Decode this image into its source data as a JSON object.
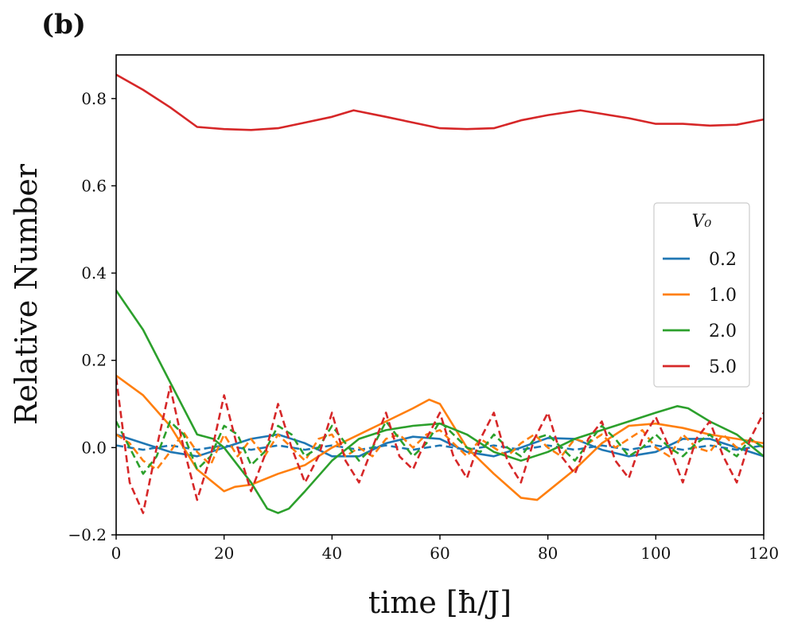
{
  "panel_label": "(b)",
  "chart_data": {
    "type": "line",
    "xlabel": "time [ħ/J]",
    "ylabel": "Relative Number",
    "xlim": [
      0,
      120
    ],
    "ylim": [
      -0.2,
      0.9
    ],
    "xticks": [
      0,
      20,
      40,
      60,
      80,
      100,
      120
    ],
    "xtick_labels": [
      "0",
      "20",
      "40",
      "60",
      "80",
      "100",
      "120"
    ],
    "yticks": [
      -0.2,
      0.0,
      0.2,
      0.4,
      0.6,
      0.8
    ],
    "ytick_labels": [
      "−0.2",
      "0.0",
      "0.2",
      "0.4",
      "0.6",
      "0.8"
    ],
    "grid": false,
    "legend": {
      "title": "V₀",
      "placement": "center-right",
      "entries": [
        {
          "label": "0.2",
          "color": "#1f77b4"
        },
        {
          "label": "1.0",
          "color": "#ff7f0e"
        },
        {
          "label": "2.0",
          "color": "#2ca02c"
        },
        {
          "label": "5.0",
          "color": "#d62728"
        }
      ]
    },
    "series": [
      {
        "name": "V0=0.2 solid",
        "v0": "0.2",
        "style": "solid",
        "color": "#1f77b4",
        "x": [
          0,
          5,
          10,
          15,
          20,
          25,
          30,
          35,
          40,
          45,
          50,
          55,
          60,
          65,
          70,
          75,
          80,
          85,
          90,
          95,
          100,
          105,
          110,
          115,
          120
        ],
        "y": [
          0.03,
          0.01,
          -0.01,
          -0.02,
          0.0,
          0.02,
          0.03,
          0.01,
          -0.02,
          -0.02,
          0.01,
          0.025,
          0.02,
          -0.01,
          -0.02,
          0.0,
          0.022,
          0.02,
          -0.005,
          -0.02,
          -0.01,
          0.02,
          0.02,
          0.0,
          -0.02
        ]
      },
      {
        "name": "V0=0.2 dashed",
        "v0": "0.2",
        "style": "dashed",
        "color": "#1f77b4",
        "x": [
          0,
          5,
          10,
          15,
          20,
          25,
          30,
          35,
          40,
          45,
          50,
          55,
          60,
          65,
          70,
          75,
          80,
          85,
          90,
          95,
          100,
          105,
          110,
          115,
          120
        ],
        "y": [
          0.005,
          -0.005,
          0.005,
          -0.005,
          0.005,
          -0.005,
          0.005,
          -0.005,
          0.005,
          -0.005,
          0.005,
          -0.005,
          0.005,
          -0.005,
          0.005,
          -0.005,
          0.005,
          -0.005,
          0.005,
          -0.005,
          0.005,
          -0.005,
          0.005,
          -0.005,
          0.005
        ]
      },
      {
        "name": "V0=1.0 solid",
        "v0": "1.0",
        "style": "solid",
        "color": "#ff7f0e",
        "x": [
          0,
          5,
          10,
          15,
          20,
          22,
          25,
          30,
          35,
          40,
          45,
          50,
          55,
          58,
          60,
          65,
          70,
          75,
          78,
          80,
          85,
          90,
          95,
          100,
          105,
          110,
          115,
          120
        ],
        "y": [
          0.165,
          0.12,
          0.05,
          -0.05,
          -0.1,
          -0.09,
          -0.085,
          -0.06,
          -0.04,
          0.0,
          0.03,
          0.06,
          0.09,
          0.11,
          0.1,
          0.0,
          -0.06,
          -0.115,
          -0.12,
          -0.1,
          -0.05,
          0.01,
          0.05,
          0.055,
          0.045,
          0.03,
          0.02,
          0.01
        ]
      },
      {
        "name": "V0=1.0 dashed",
        "v0": "1.0",
        "style": "dashed",
        "color": "#ff7f0e",
        "x": [
          0,
          2.5,
          5,
          7.5,
          10,
          12.5,
          15,
          17.5,
          20,
          22.5,
          25,
          27.5,
          30,
          32.5,
          35,
          37.5,
          40,
          42.5,
          45,
          47.5,
          50,
          52.5,
          55,
          57.5,
          60,
          62.5,
          65,
          67.5,
          70,
          72.5,
          75,
          77.5,
          80,
          82.5,
          85,
          87.5,
          90,
          92.5,
          95,
          97.5,
          100,
          102.5,
          105,
          107.5,
          110,
          112.5,
          115,
          117.5,
          120
        ],
        "y": [
          0.03,
          0.01,
          -0.03,
          -0.05,
          -0.01,
          0.035,
          -0.01,
          -0.04,
          0.03,
          -0.02,
          0.02,
          -0.02,
          0.03,
          0.0,
          -0.03,
          0.02,
          0.03,
          -0.02,
          0.0,
          -0.02,
          0.02,
          0.03,
          0.0,
          0.03,
          0.04,
          0.01,
          -0.02,
          0.02,
          0.0,
          -0.02,
          0.01,
          0.03,
          0.0,
          -0.02,
          0.02,
          0.01,
          0.03,
          0.0,
          0.02,
          0.04,
          0.0,
          -0.02,
          0.03,
          0.0,
          -0.01,
          0.03,
          0.0,
          0.02,
          0.0
        ]
      },
      {
        "name": "V0=2.0 solid",
        "v0": "2.0",
        "style": "solid",
        "color": "#2ca02c",
        "x": [
          0,
          5,
          10,
          15,
          18,
          20,
          25,
          28,
          30,
          32,
          35,
          40,
          45,
          50,
          55,
          60,
          65,
          70,
          75,
          80,
          85,
          90,
          95,
          100,
          104,
          106,
          110,
          115,
          120
        ],
        "y": [
          0.36,
          0.27,
          0.15,
          0.03,
          0.02,
          0.0,
          -0.08,
          -0.14,
          -0.15,
          -0.14,
          -0.1,
          -0.03,
          0.02,
          0.04,
          0.05,
          0.055,
          0.03,
          -0.01,
          -0.03,
          -0.01,
          0.02,
          0.04,
          0.06,
          0.08,
          0.095,
          0.09,
          0.06,
          0.03,
          -0.02
        ]
      },
      {
        "name": "V0=2.0 dashed",
        "v0": "2.0",
        "style": "dashed",
        "color": "#2ca02c",
        "x": [
          0,
          2.5,
          5,
          7.5,
          10,
          12.5,
          15,
          17.5,
          20,
          22.5,
          25,
          27.5,
          30,
          32.5,
          35,
          37.5,
          40,
          42.5,
          45,
          47.5,
          50,
          52.5,
          55,
          57.5,
          60,
          62.5,
          65,
          67.5,
          70,
          72.5,
          75,
          77.5,
          80,
          82.5,
          85,
          87.5,
          90,
          92.5,
          95,
          97.5,
          100,
          102.5,
          105,
          107.5,
          110,
          112.5,
          115,
          117.5,
          120
        ],
        "y": [
          0.06,
          0.0,
          -0.06,
          -0.02,
          0.06,
          0.03,
          -0.05,
          -0.02,
          0.05,
          0.03,
          -0.04,
          -0.01,
          0.05,
          0.03,
          -0.02,
          0.0,
          0.05,
          0.01,
          -0.03,
          0.0,
          0.06,
          0.02,
          -0.02,
          0.01,
          0.06,
          0.03,
          0.0,
          -0.01,
          0.03,
          0.0,
          -0.02,
          0.02,
          0.03,
          0.0,
          -0.03,
          0.01,
          0.05,
          0.02,
          -0.02,
          0.0,
          0.03,
          0.0,
          -0.02,
          0.01,
          0.03,
          0.0,
          -0.02,
          0.02,
          0.0
        ]
      },
      {
        "name": "V0=5.0 solid",
        "v0": "5.0",
        "style": "solid",
        "color": "#d62728",
        "x": [
          0,
          5,
          10,
          15,
          20,
          25,
          30,
          35,
          40,
          44,
          50,
          55,
          60,
          65,
          70,
          75,
          80,
          86,
          90,
          95,
          100,
          105,
          110,
          115,
          120
        ],
        "y": [
          0.855,
          0.82,
          0.78,
          0.735,
          0.73,
          0.728,
          0.732,
          0.745,
          0.758,
          0.773,
          0.758,
          0.745,
          0.732,
          0.73,
          0.732,
          0.75,
          0.762,
          0.773,
          0.765,
          0.755,
          0.742,
          0.742,
          0.738,
          0.74,
          0.752
        ]
      },
      {
        "name": "V0=5.0 dashed",
        "v0": "5.0",
        "style": "dashed",
        "color": "#d62728",
        "x": [
          0,
          2.5,
          5,
          7.5,
          10,
          12.5,
          15,
          17.5,
          20,
          22.5,
          25,
          27.5,
          30,
          32.5,
          35,
          37.5,
          40,
          42.5,
          45,
          47.5,
          50,
          52.5,
          55,
          57.5,
          60,
          62.5,
          65,
          67.5,
          70,
          72.5,
          75,
          77.5,
          80,
          82.5,
          85,
          87.5,
          90,
          92.5,
          95,
          97.5,
          100,
          102.5,
          105,
          107.5,
          110,
          112.5,
          115,
          117.5,
          120
        ],
        "y": [
          0.16,
          -0.08,
          -0.15,
          0.0,
          0.14,
          0.0,
          -0.12,
          -0.02,
          0.12,
          0.0,
          -0.1,
          -0.02,
          0.1,
          0.0,
          -0.08,
          -0.02,
          0.08,
          -0.03,
          -0.08,
          0.0,
          0.08,
          -0.02,
          -0.05,
          0.02,
          0.08,
          -0.02,
          -0.07,
          0.02,
          0.08,
          -0.03,
          -0.08,
          0.02,
          0.08,
          -0.02,
          -0.06,
          0.02,
          0.06,
          -0.03,
          -0.07,
          0.02,
          0.07,
          0.0,
          -0.08,
          0.02,
          0.06,
          -0.02,
          -0.08,
          0.02,
          0.08
        ]
      }
    ]
  }
}
